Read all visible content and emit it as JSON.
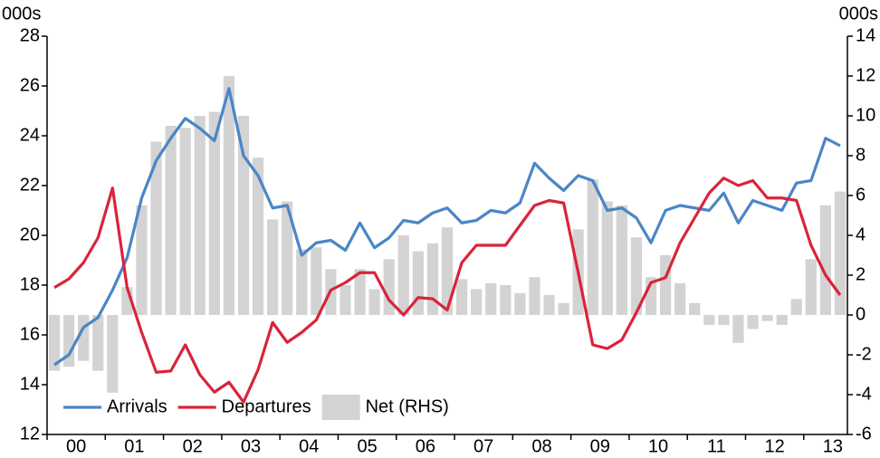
{
  "chart_data": {
    "type": "combo",
    "ylabel": "000s",
    "y2label": "000s",
    "categories": [
      null,
      "00",
      null,
      null,
      null,
      "01",
      null,
      null,
      null,
      "02",
      null,
      null,
      null,
      "03",
      null,
      null,
      null,
      "04",
      null,
      null,
      null,
      "05",
      null,
      null,
      null,
      "06",
      null,
      null,
      null,
      "07",
      null,
      null,
      null,
      "08",
      null,
      null,
      null,
      "09",
      null,
      null,
      null,
      "10",
      null,
      null,
      null,
      "11",
      null,
      null,
      null,
      "12",
      null,
      null,
      null,
      "13",
      null
    ],
    "ylim": [
      12,
      28
    ],
    "yticks": [
      12,
      14,
      16,
      18,
      20,
      22,
      24,
      26,
      28
    ],
    "y2lim": [
      -6,
      14
    ],
    "y2ticks": [
      -6,
      -4,
      -2,
      0,
      2,
      4,
      6,
      8,
      10,
      12,
      14
    ],
    "legend": "lower left",
    "series": [
      {
        "name": "Arrivals",
        "type": "line",
        "color": "#4a86c5",
        "values": [
          14.8,
          15.2,
          16.3,
          16.7,
          17.8,
          19.1,
          21.5,
          23.0,
          23.9,
          24.7,
          24.3,
          23.8,
          25.9,
          23.2,
          22.4,
          21.1,
          21.2,
          19.2,
          19.7,
          19.8,
          19.4,
          20.5,
          19.5,
          19.9,
          20.6,
          20.5,
          20.9,
          21.1,
          20.5,
          20.6,
          21.0,
          20.9,
          21.3,
          22.9,
          22.3,
          21.8,
          22.4,
          22.2,
          21.0,
          21.1,
          20.7,
          19.7,
          21.0,
          21.2,
          21.1,
          21.0,
          21.7,
          20.5,
          21.4,
          21.2,
          21.0,
          22.1,
          22.2,
          23.9,
          23.6
        ]
      },
      {
        "name": "Departures",
        "type": "line",
        "color": "#d9243c",
        "values": [
          17.9,
          18.25,
          18.9,
          19.9,
          21.9,
          17.9,
          16.1,
          14.5,
          14.55,
          15.6,
          14.4,
          13.7,
          14.1,
          13.3,
          14.6,
          16.5,
          15.7,
          16.1,
          16.6,
          17.8,
          18.1,
          18.5,
          18.5,
          17.4,
          16.8,
          17.5,
          17.45,
          17.0,
          18.9,
          19.6,
          19.6,
          19.6,
          20.4,
          21.2,
          21.4,
          21.3,
          18.5,
          15.6,
          15.45,
          15.8,
          16.9,
          18.1,
          18.3,
          19.7,
          20.7,
          21.7,
          22.3,
          22.0,
          22.2,
          21.5,
          21.5,
          21.4,
          19.6,
          18.4,
          17.6
        ]
      },
      {
        "name": "Net (RHS)",
        "type": "bar",
        "axis": "y2",
        "color": "#d3d3d3",
        "values": [
          -2.8,
          -2.6,
          -2.3,
          -2.8,
          -3.9,
          1.4,
          5.5,
          8.7,
          9.5,
          9.4,
          10.0,
          10.2,
          12.0,
          10.0,
          7.9,
          4.8,
          5.7,
          3.3,
          3.4,
          2.3,
          1.5,
          2.3,
          1.3,
          2.8,
          4.0,
          3.2,
          3.6,
          4.4,
          1.8,
          1.3,
          1.6,
          1.5,
          1.1,
          1.9,
          1.0,
          0.6,
          4.3,
          6.8,
          5.7,
          5.5,
          3.9,
          1.9,
          3.0,
          1.6,
          0.6,
          -0.5,
          -0.5,
          -1.4,
          -0.7,
          -0.3,
          -0.5,
          0.8,
          2.8,
          5.5,
          6.2
        ]
      }
    ]
  }
}
